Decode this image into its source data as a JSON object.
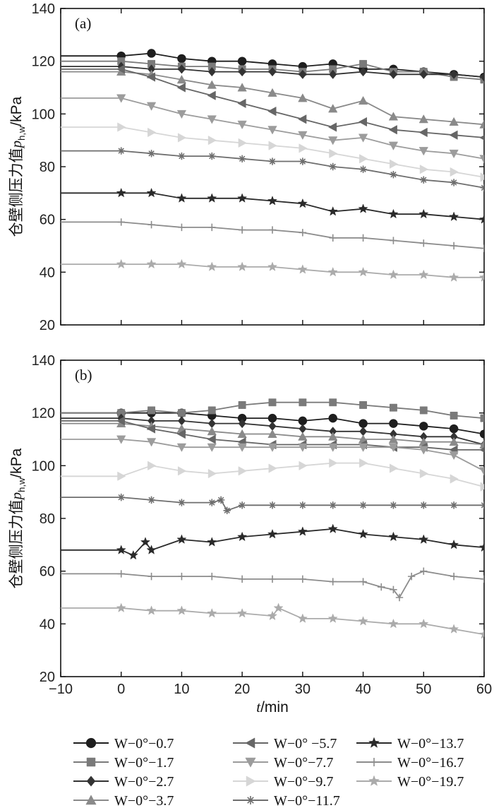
{
  "chart_data": [
    {
      "type": "line",
      "panel_label": "(a)",
      "ylabel": "仓壁侧压力值p_h,w/kPa",
      "xlabel": "",
      "xlim": [
        -10,
        60
      ],
      "ylim": [
        20,
        140
      ],
      "x_ticks": [
        -10,
        0,
        10,
        20,
        30,
        40,
        50,
        60
      ],
      "y_ticks": [
        20,
        40,
        60,
        80,
        100,
        120,
        140
      ],
      "series": [
        {
          "name": "W−0°−0.7",
          "color": "#1e1e1e",
          "marker": "circle",
          "x": [
            -10,
            0,
            5,
            10,
            15,
            20,
            25,
            30,
            35,
            40,
            45,
            50,
            55,
            60
          ],
          "y": [
            122,
            122,
            123,
            121,
            120,
            120,
            119,
            118,
            119,
            117,
            117,
            116,
            115,
            114
          ]
        },
        {
          "name": "W−0°−1.7",
          "color": "#7a7a7a",
          "marker": "square",
          "x": [
            -10,
            0,
            5,
            10,
            15,
            20,
            25,
            30,
            35,
            40,
            45,
            50,
            55,
            60
          ],
          "y": [
            120,
            120,
            119,
            118,
            118,
            117,
            117,
            116,
            117,
            119,
            116,
            116,
            114,
            113
          ]
        },
        {
          "name": "W−0°−2.7",
          "color": "#333333",
          "marker": "diamond",
          "x": [
            -10,
            0,
            5,
            10,
            15,
            20,
            25,
            30,
            35,
            40,
            45,
            50,
            55,
            60
          ],
          "y": [
            118,
            118,
            117,
            117,
            116,
            116,
            116,
            115,
            115,
            116,
            115,
            115,
            115,
            114
          ]
        },
        {
          "name": "W−0°−3.7",
          "color": "#8a8a8a",
          "marker": "triangle-up",
          "x": [
            -10,
            0,
            5,
            10,
            15,
            20,
            25,
            30,
            35,
            40,
            45,
            50,
            55,
            60
          ],
          "y": [
            116,
            116,
            115,
            113,
            111,
            110,
            108,
            106,
            102,
            105,
            99,
            98,
            97,
            96
          ]
        },
        {
          "name": "W−0° −5.7",
          "color": "#666666",
          "marker": "triangle-left",
          "x": [
            -10,
            0,
            5,
            10,
            15,
            20,
            25,
            30,
            35,
            40,
            45,
            50,
            55,
            60
          ],
          "y": [
            117,
            117,
            114,
            110,
            107,
            104,
            101,
            98,
            95,
            97,
            94,
            93,
            92,
            91
          ]
        },
        {
          "name": "W−0°−7.7",
          "color": "#9c9c9c",
          "marker": "triangle-down",
          "x": [
            -10,
            0,
            5,
            10,
            15,
            20,
            25,
            30,
            35,
            40,
            45,
            50,
            55,
            60
          ],
          "y": [
            106,
            106,
            103,
            100,
            98,
            96,
            94,
            92,
            90,
            91,
            88,
            86,
            85,
            83
          ]
        },
        {
          "name": "W−0°−9.7",
          "color": "#d6d6d6",
          "marker": "triangle-right",
          "x": [
            -10,
            0,
            5,
            10,
            15,
            20,
            25,
            30,
            35,
            40,
            45,
            50,
            55,
            60
          ],
          "y": [
            95,
            95,
            93,
            91,
            90,
            89,
            88,
            87,
            85,
            83,
            81,
            79,
            78,
            76
          ]
        },
        {
          "name": "W−0°−11.7",
          "color": "#6e6e6e",
          "marker": "asterisk",
          "x": [
            -10,
            0,
            5,
            10,
            15,
            20,
            25,
            30,
            35,
            40,
            45,
            50,
            55,
            60
          ],
          "y": [
            86,
            86,
            85,
            84,
            84,
            83,
            82,
            82,
            80,
            79,
            77,
            75,
            74,
            72
          ]
        },
        {
          "name": "W−0°−13.7",
          "color": "#2a2a2a",
          "marker": "star",
          "x": [
            -10,
            0,
            5,
            10,
            15,
            20,
            25,
            30,
            35,
            40,
            45,
            50,
            55,
            60
          ],
          "y": [
            70,
            70,
            70,
            68,
            68,
            68,
            67,
            66,
            63,
            64,
            62,
            62,
            61,
            60
          ]
        },
        {
          "name": "W−0°−16.7",
          "color": "#8c8c8c",
          "marker": "plus",
          "x": [
            -10,
            0,
            5,
            10,
            15,
            20,
            25,
            30,
            35,
            40,
            45,
            50,
            55,
            60
          ],
          "y": [
            59,
            59,
            58,
            57,
            57,
            56,
            56,
            55,
            53,
            53,
            52,
            51,
            50,
            49
          ]
        },
        {
          "name": "W−0°−19.7",
          "color": "#ababab",
          "marker": "star",
          "x": [
            -10,
            0,
            5,
            10,
            15,
            20,
            25,
            30,
            35,
            40,
            45,
            50,
            55,
            60
          ],
          "y": [
            43,
            43,
            43,
            43,
            42,
            42,
            42,
            41,
            40,
            40,
            39,
            39,
            38,
            38
          ]
        }
      ]
    },
    {
      "type": "line",
      "panel_label": "(b)",
      "ylabel": "仓壁侧压力值p_h,w/kPa",
      "xlabel": "t/min",
      "xlim": [
        -10,
        60
      ],
      "ylim": [
        20,
        140
      ],
      "x_ticks": [
        -10,
        0,
        10,
        20,
        30,
        40,
        50,
        60
      ],
      "y_ticks": [
        20,
        40,
        60,
        80,
        100,
        120,
        140
      ],
      "series": [
        {
          "name": "W−0°−0.7",
          "color": "#1e1e1e",
          "marker": "circle",
          "x": [
            -10,
            0,
            5,
            10,
            15,
            20,
            25,
            30,
            35,
            40,
            45,
            50,
            55,
            60
          ],
          "y": [
            120,
            120,
            120,
            120,
            119,
            118,
            118,
            117,
            118,
            116,
            116,
            115,
            114,
            112
          ]
        },
        {
          "name": "W−0°−1.7",
          "color": "#7a7a7a",
          "marker": "square",
          "x": [
            -10,
            0,
            5,
            10,
            15,
            20,
            25,
            30,
            35,
            40,
            45,
            50,
            55,
            60
          ],
          "y": [
            120,
            120,
            121,
            120,
            121,
            123,
            124,
            124,
            124,
            123,
            122,
            121,
            119,
            118
          ]
        },
        {
          "name": "W−0°−2.7",
          "color": "#333333",
          "marker": "diamond",
          "x": [
            -10,
            0,
            5,
            10,
            15,
            20,
            25,
            30,
            35,
            40,
            45,
            50,
            55,
            60
          ],
          "y": [
            118,
            118,
            117,
            117,
            116,
            116,
            115,
            114,
            113,
            113,
            112,
            111,
            111,
            108
          ]
        },
        {
          "name": "W−0°−3.7",
          "color": "#8a8a8a",
          "marker": "triangle-up",
          "x": [
            -10,
            0,
            5,
            10,
            15,
            20,
            25,
            30,
            35,
            40,
            45,
            50,
            55,
            60
          ],
          "y": [
            116,
            116,
            115,
            114,
            113,
            112,
            112,
            111,
            111,
            110,
            110,
            109,
            109,
            108
          ]
        },
        {
          "name": "W−0° −5.7",
          "color": "#666666",
          "marker": "triangle-left",
          "x": [
            -10,
            0,
            5,
            10,
            15,
            20,
            25,
            30,
            35,
            40,
            45,
            50,
            55,
            60
          ],
          "y": [
            117,
            117,
            114,
            112,
            110,
            109,
            108,
            108,
            108,
            108,
            107,
            107,
            106,
            106
          ]
        },
        {
          "name": "W−0°−7.7",
          "color": "#9c9c9c",
          "marker": "triangle-down",
          "x": [
            -10,
            0,
            5,
            10,
            15,
            20,
            25,
            30,
            35,
            40,
            45,
            50,
            55,
            60
          ],
          "y": [
            110,
            110,
            109,
            107,
            107,
            107,
            107,
            107,
            107,
            107,
            107,
            106,
            104,
            98
          ]
        },
        {
          "name": "W−0°−9.7",
          "color": "#d6d6d6",
          "marker": "triangle-right",
          "x": [
            -10,
            0,
            5,
            10,
            15,
            20,
            25,
            30,
            35,
            40,
            45,
            50,
            55,
            60
          ],
          "y": [
            96,
            96,
            100,
            98,
            97,
            98,
            99,
            100,
            101,
            101,
            99,
            97,
            95,
            92
          ]
        },
        {
          "name": "W−0°−11.7",
          "color": "#6e6e6e",
          "marker": "asterisk",
          "x": [
            -10,
            0,
            5,
            10,
            15,
            16.5,
            17.5,
            20,
            25,
            30,
            35,
            40,
            45,
            50,
            55,
            60
          ],
          "y": [
            88,
            88,
            87,
            86,
            86,
            87,
            83,
            85,
            85,
            85,
            85,
            85,
            85,
            85,
            85,
            85
          ]
        },
        {
          "name": "W−0°−13.7",
          "color": "#2a2a2a",
          "marker": "star",
          "x": [
            -10,
            0,
            2,
            4,
            5,
            10,
            15,
            20,
            25,
            30,
            35,
            40,
            45,
            50,
            55,
            60
          ],
          "y": [
            68,
            68,
            66,
            71,
            68,
            72,
            71,
            73,
            74,
            75,
            76,
            74,
            73,
            72,
            70,
            69
          ]
        },
        {
          "name": "W−0°−16.7",
          "color": "#8c8c8c",
          "marker": "plus",
          "x": [
            -10,
            0,
            5,
            10,
            15,
            20,
            25,
            30,
            35,
            40,
            43,
            45,
            46,
            48,
            50,
            55,
            60
          ],
          "y": [
            59,
            59,
            58,
            58,
            58,
            57,
            57,
            57,
            56,
            56,
            54,
            53,
            50,
            58,
            60,
            58,
            57
          ]
        },
        {
          "name": "W−0°−19.7",
          "color": "#ababab",
          "marker": "star",
          "x": [
            -10,
            0,
            5,
            10,
            15,
            20,
            25,
            26,
            30,
            35,
            40,
            45,
            50,
            55,
            60
          ],
          "y": [
            46,
            46,
            45,
            45,
            44,
            44,
            43,
            46,
            42,
            42,
            41,
            40,
            40,
            38,
            36
          ]
        }
      ]
    }
  ],
  "legend": {
    "entries": [
      {
        "label": "W−0°−0.7",
        "color": "#1e1e1e",
        "marker": "circle"
      },
      {
        "label": "W−0° −5.7",
        "color": "#666666",
        "marker": "triangle-left"
      },
      {
        "label": "W−0°−13.7",
        "color": "#2a2a2a",
        "marker": "star"
      },
      {
        "label": "W−0°−1.7",
        "color": "#7a7a7a",
        "marker": "square"
      },
      {
        "label": "W−0°−7.7",
        "color": "#9c9c9c",
        "marker": "triangle-down"
      },
      {
        "label": "W−0°−16.7",
        "color": "#8c8c8c",
        "marker": "plus"
      },
      {
        "label": "W−0°−2.7",
        "color": "#333333",
        "marker": "diamond"
      },
      {
        "label": "W−0°−9.7",
        "color": "#d6d6d6",
        "marker": "triangle-right"
      },
      {
        "label": "W−0°−19.7",
        "color": "#ababab",
        "marker": "star"
      },
      {
        "label": "W−0°−3.7",
        "color": "#8a8a8a",
        "marker": "triangle-up"
      },
      {
        "label": "W−0°−11.7",
        "color": "#6e6e6e",
        "marker": "asterisk"
      }
    ]
  }
}
